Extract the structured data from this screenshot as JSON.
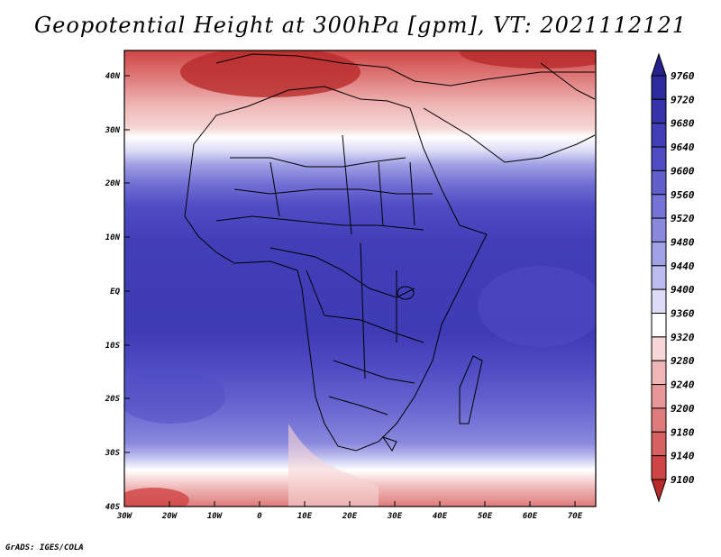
{
  "title": "Geopotential Height at 300hPa [gpm], VT: 2021112121",
  "credit": "GrADS: IGES/COLA",
  "map": {
    "lat_labels": [
      "40N",
      "30N",
      "20N",
      "10N",
      "EQ",
      "10S",
      "20S",
      "30S",
      "40S"
    ],
    "lon_labels": [
      "30W",
      "20W",
      "10W",
      "0",
      "10E",
      "20E",
      "30E",
      "40E",
      "50E",
      "60E",
      "70E"
    ]
  },
  "colorbar": {
    "levels": [
      "9760",
      "9720",
      "9680",
      "9640",
      "9600",
      "9560",
      "9520",
      "9480",
      "9440",
      "9400",
      "9360",
      "9320",
      "9280",
      "9240",
      "9200",
      "9180",
      "9140",
      "9100"
    ],
    "colors": [
      "#24208e",
      "#2c2a9c",
      "#3633ab",
      "#413eb8",
      "#504dc4",
      "#615fcc",
      "#7472d5",
      "#8988dd",
      "#a1a1e6",
      "#bcbdee",
      "#dcdcf6",
      "#ffffff",
      "#f6d6d6",
      "#efb6b6",
      "#e79797",
      "#df7b7b",
      "#d76060",
      "#cf4545",
      "#b82a2a"
    ]
  }
}
